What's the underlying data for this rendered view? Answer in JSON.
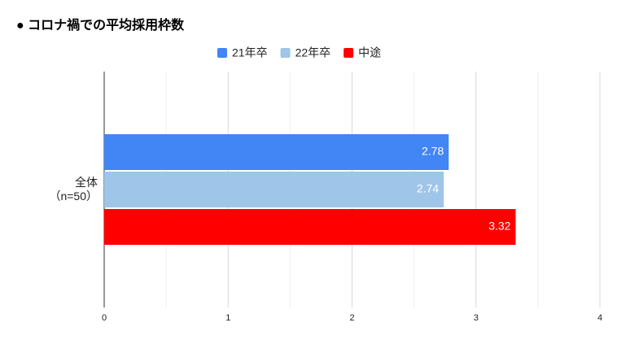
{
  "chart_data": {
    "type": "hbar",
    "title": "● コロナ禍での平均採用枠数",
    "categories": [
      "全体\n（n=50）"
    ],
    "series": [
      {
        "name": "21年卒",
        "color": "#4285f4",
        "values": [
          2.78
        ]
      },
      {
        "name": "22年卒",
        "color": "#9fc5e8",
        "values": [
          2.74
        ]
      },
      {
        "name": "中途",
        "color": "#ff0000",
        "values": [
          3.32
        ]
      }
    ],
    "xlim": [
      0,
      4
    ],
    "xticks": [
      0,
      1,
      2,
      3,
      4
    ],
    "xminor_ticks": [
      0.5,
      1.5,
      2.5,
      3.5
    ],
    "grid": true,
    "legend": "top",
    "value_labels_inside": true
  }
}
